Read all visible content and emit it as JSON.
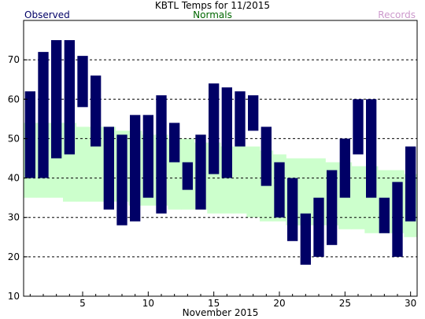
{
  "chart_data": {
    "type": "bar",
    "title": "KBTL Temps for  11/2015",
    "xlabel": "November 2015",
    "ylabel": "",
    "legend": [
      {
        "label": "Observed",
        "color": "#000066"
      },
      {
        "label": "Normals",
        "color": "#006600"
      },
      {
        "label": "Records",
        "color": "#cc99cc"
      }
    ],
    "xlim": [
      0.5,
      30.5
    ],
    "ylim": [
      10,
      80
    ],
    "x_ticks": [
      5,
      10,
      15,
      20,
      25,
      30
    ],
    "y_ticks": [
      10,
      20,
      30,
      40,
      50,
      60,
      70
    ],
    "grid_values": [
      20,
      30,
      40,
      50,
      60,
      70
    ],
    "days": [
      1,
      2,
      3,
      4,
      5,
      6,
      7,
      8,
      9,
      10,
      11,
      12,
      13,
      14,
      15,
      16,
      17,
      18,
      19,
      20,
      21,
      22,
      23,
      24,
      25,
      26,
      27,
      28,
      29,
      30
    ],
    "observed_high": [
      62,
      72,
      75,
      75,
      71,
      66,
      53,
      51,
      56,
      56,
      61,
      54,
      44,
      51,
      64,
      63,
      62,
      61,
      53,
      44,
      40,
      31,
      35,
      42,
      50,
      60,
      60,
      35,
      39,
      48
    ],
    "observed_low": [
      40,
      40,
      45,
      46,
      58,
      48,
      32,
      28,
      29,
      35,
      31,
      44,
      37,
      32,
      41,
      40,
      48,
      52,
      38,
      30,
      24,
      18,
      20,
      23,
      35,
      46,
      35,
      26,
      20,
      29
    ],
    "normal_high": [
      54,
      54,
      54,
      54,
      53,
      53,
      53,
      52,
      52,
      51,
      51,
      50,
      50,
      49,
      49,
      48,
      48,
      48,
      47,
      46,
      45,
      45,
      45,
      44,
      44,
      43,
      43,
      42,
      42,
      41
    ],
    "normal_low": [
      35,
      35,
      35,
      34,
      34,
      34,
      34,
      34,
      33,
      33,
      33,
      32,
      32,
      32,
      31,
      31,
      31,
      30,
      29,
      29,
      28,
      28,
      28,
      28,
      27,
      27,
      26,
      26,
      26,
      25
    ],
    "colors": {
      "observed": "#000066",
      "normals_fill": "#ccffcc",
      "normals_label": "#006600",
      "records_label": "#cc99cc",
      "grid": "#000000",
      "axis": "#000000"
    }
  }
}
